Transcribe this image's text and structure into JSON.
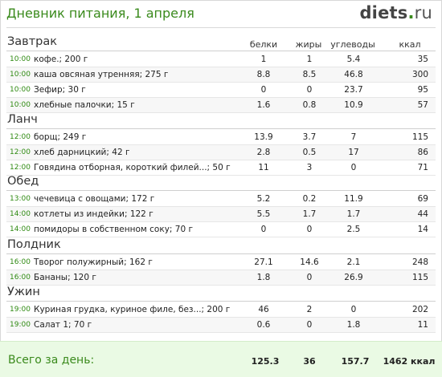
{
  "header": {
    "title": "Дневник питания, 1 апреля",
    "logo_name": "diets",
    "logo_dot": ".",
    "logo_tld": "ru"
  },
  "columns": {
    "protein": "белки",
    "fat": "жиры",
    "carbs": "углеводы",
    "kcal": "ккал"
  },
  "meals": [
    {
      "name": "Завтрак",
      "items": [
        {
          "time": "10:00",
          "food": "кофе.; 200 г",
          "protein": "1",
          "fat": "1",
          "carbs": "5.4",
          "kcal": "35"
        },
        {
          "time": "10:00",
          "food": "каша овсяная утренняя; 275 г",
          "protein": "8.8",
          "fat": "8.5",
          "carbs": "46.8",
          "kcal": "300"
        },
        {
          "time": "10:00",
          "food": "Зефир; 30 г",
          "protein": "0",
          "fat": "0",
          "carbs": "23.7",
          "kcal": "95"
        },
        {
          "time": "10:00",
          "food": "хлебные палочки; 15 г",
          "protein": "1.6",
          "fat": "0.8",
          "carbs": "10.9",
          "kcal": "57"
        }
      ]
    },
    {
      "name": "Ланч",
      "items": [
        {
          "time": "12:00",
          "food": "борщ; 249 г",
          "protein": "13.9",
          "fat": "3.7",
          "carbs": "7",
          "kcal": "115"
        },
        {
          "time": "12:00",
          "food": "хлеб дарницкий; 42 г",
          "protein": "2.8",
          "fat": "0.5",
          "carbs": "17",
          "kcal": "86"
        },
        {
          "time": "12:00",
          "food": "Говядина отборная, короткий филей...; 50 г",
          "protein": "11",
          "fat": "3",
          "carbs": "0",
          "kcal": "71"
        }
      ]
    },
    {
      "name": "Обед",
      "items": [
        {
          "time": "13:00",
          "food": "чечевица с овощами; 172 г",
          "protein": "5.2",
          "fat": "0.2",
          "carbs": "11.9",
          "kcal": "69"
        },
        {
          "time": "14:00",
          "food": "котлеты из индейки; 122 г",
          "protein": "5.5",
          "fat": "1.7",
          "carbs": "1.7",
          "kcal": "44"
        },
        {
          "time": "14:00",
          "food": "помидоры в собственном соку; 70 г",
          "protein": "0",
          "fat": "0",
          "carbs": "2.5",
          "kcal": "14"
        }
      ]
    },
    {
      "name": "Полдник",
      "items": [
        {
          "time": "16:00",
          "food": "Творог полужирный; 162 г",
          "protein": "27.1",
          "fat": "14.6",
          "carbs": "2.1",
          "kcal": "248"
        },
        {
          "time": "16:00",
          "food": "Бананы; 120 г",
          "protein": "1.8",
          "fat": "0",
          "carbs": "26.9",
          "kcal": "115"
        }
      ]
    },
    {
      "name": "Ужин",
      "items": [
        {
          "time": "19:00",
          "food": "Куриная грудка, куриное филе, без...; 200 г",
          "protein": "46",
          "fat": "2",
          "carbs": "0",
          "kcal": "202"
        },
        {
          "time": "19:00",
          "food": "Салат 1; 70 г",
          "protein": "0.6",
          "fat": "0",
          "carbs": "1.8",
          "kcal": "11"
        }
      ]
    }
  ],
  "totals": {
    "label": "Всего за день:",
    "protein": "125.3",
    "fat": "36",
    "carbs": "157.7",
    "kcal": "1462 ккал"
  },
  "colors": {
    "accent": "#3a8a1c",
    "total_bg": "#eafae4"
  }
}
